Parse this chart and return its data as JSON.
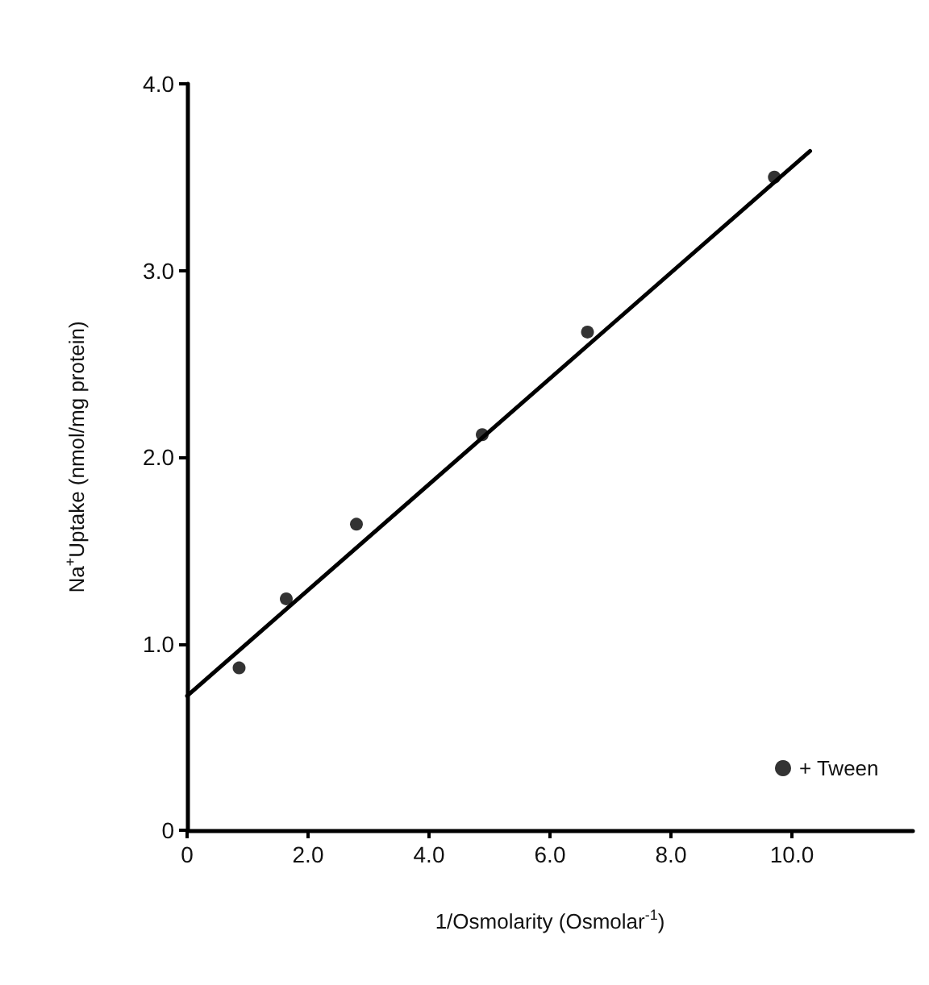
{
  "chart_data": {
    "type": "scatter",
    "xlabel": "1/Osmolarity (Osmolar$^{-1}$)",
    "ylabel": "Na$^{+}$Uptake (nmol/mg protein)",
    "series": [
      {
        "name": "+ Tween",
        "marker": "circle",
        "color": "#000000",
        "x": [
          0.86,
          1.64,
          2.8,
          4.88,
          6.62,
          9.71
        ],
        "values": [
          0.87,
          1.24,
          1.64,
          2.12,
          2.67,
          3.5
        ]
      },
      {
        "type": "line",
        "marker": "none",
        "color": "#000000",
        "x": [
          0,
          10.3
        ],
        "values": [
          0.72,
          3.64
        ]
      }
    ],
    "xlim": [
      0,
      12
    ],
    "ylim": [
      0,
      4
    ],
    "xticks": [
      0,
      {
        "value": 2,
        "label": "2.0"
      },
      {
        "value": 4,
        "label": "4.0"
      },
      {
        "value": 6,
        "label": "6.0"
      },
      {
        "value": 8,
        "label": "8.0"
      },
      {
        "value": 10,
        "label": "10.0"
      }
    ],
    "yticks": [
      0,
      {
        "value": 1,
        "label": "1.0"
      },
      {
        "value": 2,
        "label": "2.0"
      },
      {
        "value": 3,
        "label": "3.0"
      },
      {
        "value": 4,
        "label": "4.0"
      }
    ],
    "grid": false,
    "legend": "bottom right"
  }
}
